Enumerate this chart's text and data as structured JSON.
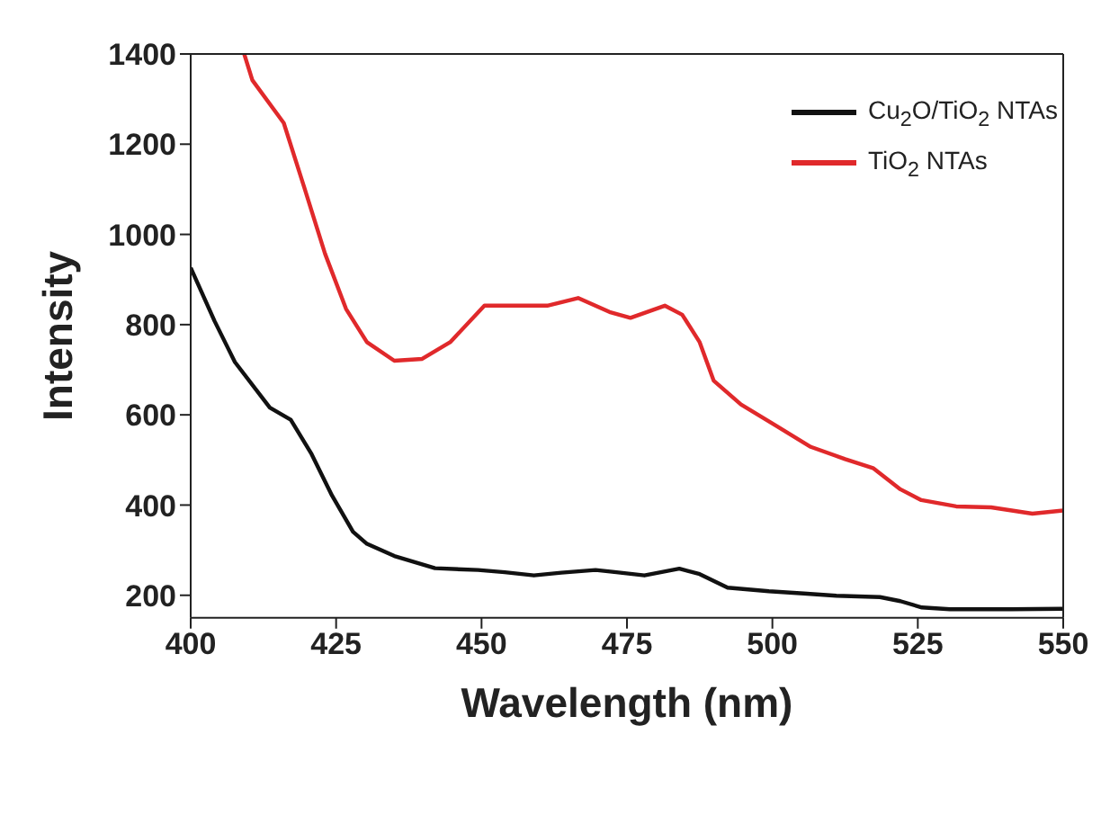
{
  "chart_data": {
    "type": "line",
    "xlabel": "Wavelength (nm)",
    "ylabel": "Intensity",
    "xlim": [
      400,
      550
    ],
    "xticks": [
      400,
      425,
      450,
      475,
      500,
      525,
      550
    ],
    "ylim": [
      150,
      1400
    ],
    "yticks": [
      200,
      400,
      600,
      800,
      1000,
      1200,
      1400
    ],
    "legend": "top right",
    "marker": "none",
    "line_style": "solid",
    "series": [
      {
        "name": "Cu$_{2}$O/TiO$_{2}$ NTAs",
        "color": "#111111",
        "x": [
          400,
          404.1,
          407.6,
          413.6,
          417.2,
          420.7,
          424.3,
          427.9,
          430.3,
          435,
          442,
          449.4,
          454,
          459,
          463.7,
          469.6,
          473.2,
          478,
          484,
          487.5,
          492.3,
          499.4,
          505.4,
          511,
          518.5,
          522,
          525.7,
          530.5,
          541,
          550
        ],
        "values": [
          926,
          808,
          717,
          616,
          589,
          515,
          421,
          341,
          314,
          287,
          260,
          256,
          251,
          244,
          250,
          256,
          251,
          244,
          259,
          247,
          217,
          209,
          204,
          199,
          196,
          187,
          173,
          169,
          169,
          170
        ]
      },
      {
        "name": "TiO$_{2}$ NTAs",
        "color": "#e0292b",
        "x": [
          409.2,
          410.6,
          416,
          419.5,
          423.1,
          426.7,
          430.3,
          435,
          439.8,
          444.6,
          450.5,
          456.5,
          461.3,
          466.6,
          472,
          475.6,
          481.5,
          484.5,
          487.5,
          489.9,
          494.6,
          500.6,
          506.6,
          512.5,
          517.3,
          522,
          525.6,
          531.6,
          537.6,
          544.7,
          550
        ],
        "values": [
          1400,
          1342,
          1247,
          1105,
          957,
          835,
          761,
          720,
          724,
          761,
          842,
          842,
          842,
          859,
          828,
          815,
          842,
          822,
          761,
          676,
          623,
          576,
          529,
          502,
          482,
          435,
          411,
          397,
          395,
          381,
          388
        ]
      }
    ]
  }
}
